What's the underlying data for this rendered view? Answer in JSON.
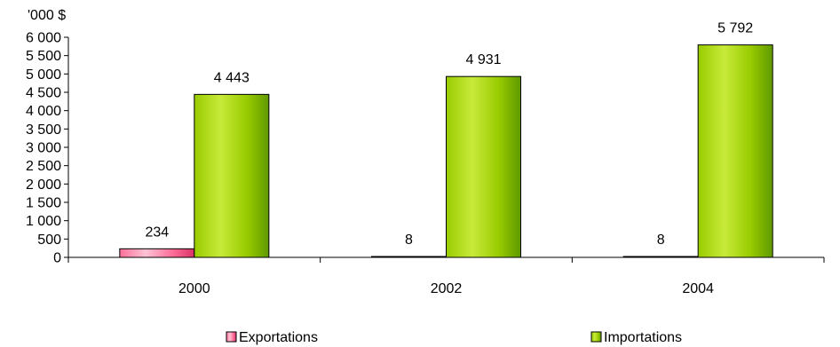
{
  "chart_data": {
    "type": "bar",
    "ylabel": "'000 $",
    "ylim": [
      0,
      6000
    ],
    "yticks": [
      0,
      500,
      1000,
      1500,
      2000,
      2500,
      3000,
      3500,
      4000,
      4500,
      5000,
      5500,
      6000
    ],
    "ytick_labels": [
      "0",
      "500",
      "1 000",
      "1 500",
      "2 000",
      "2 500",
      "3 000",
      "3 500",
      "4 000",
      "4 500",
      "5 000",
      "5 500",
      "6 000"
    ],
    "categories": [
      "2000",
      "2002",
      "2004"
    ],
    "series": [
      {
        "name": "Exportations",
        "values": [
          234,
          8,
          8
        ],
        "labels": [
          "234",
          "8",
          "8"
        ],
        "color": "#ff6f9a",
        "color_light": "#ffc2d4",
        "color_dark": "#d93366"
      },
      {
        "name": "Importations",
        "values": [
          4443,
          4931,
          5792
        ],
        "labels": [
          "4 443",
          "4 931",
          "5 792"
        ],
        "color": "#99cc00",
        "color_light": "#c8ea3a",
        "color_dark": "#5f9900"
      }
    ],
    "grid": false,
    "legend_position": "bottom"
  }
}
